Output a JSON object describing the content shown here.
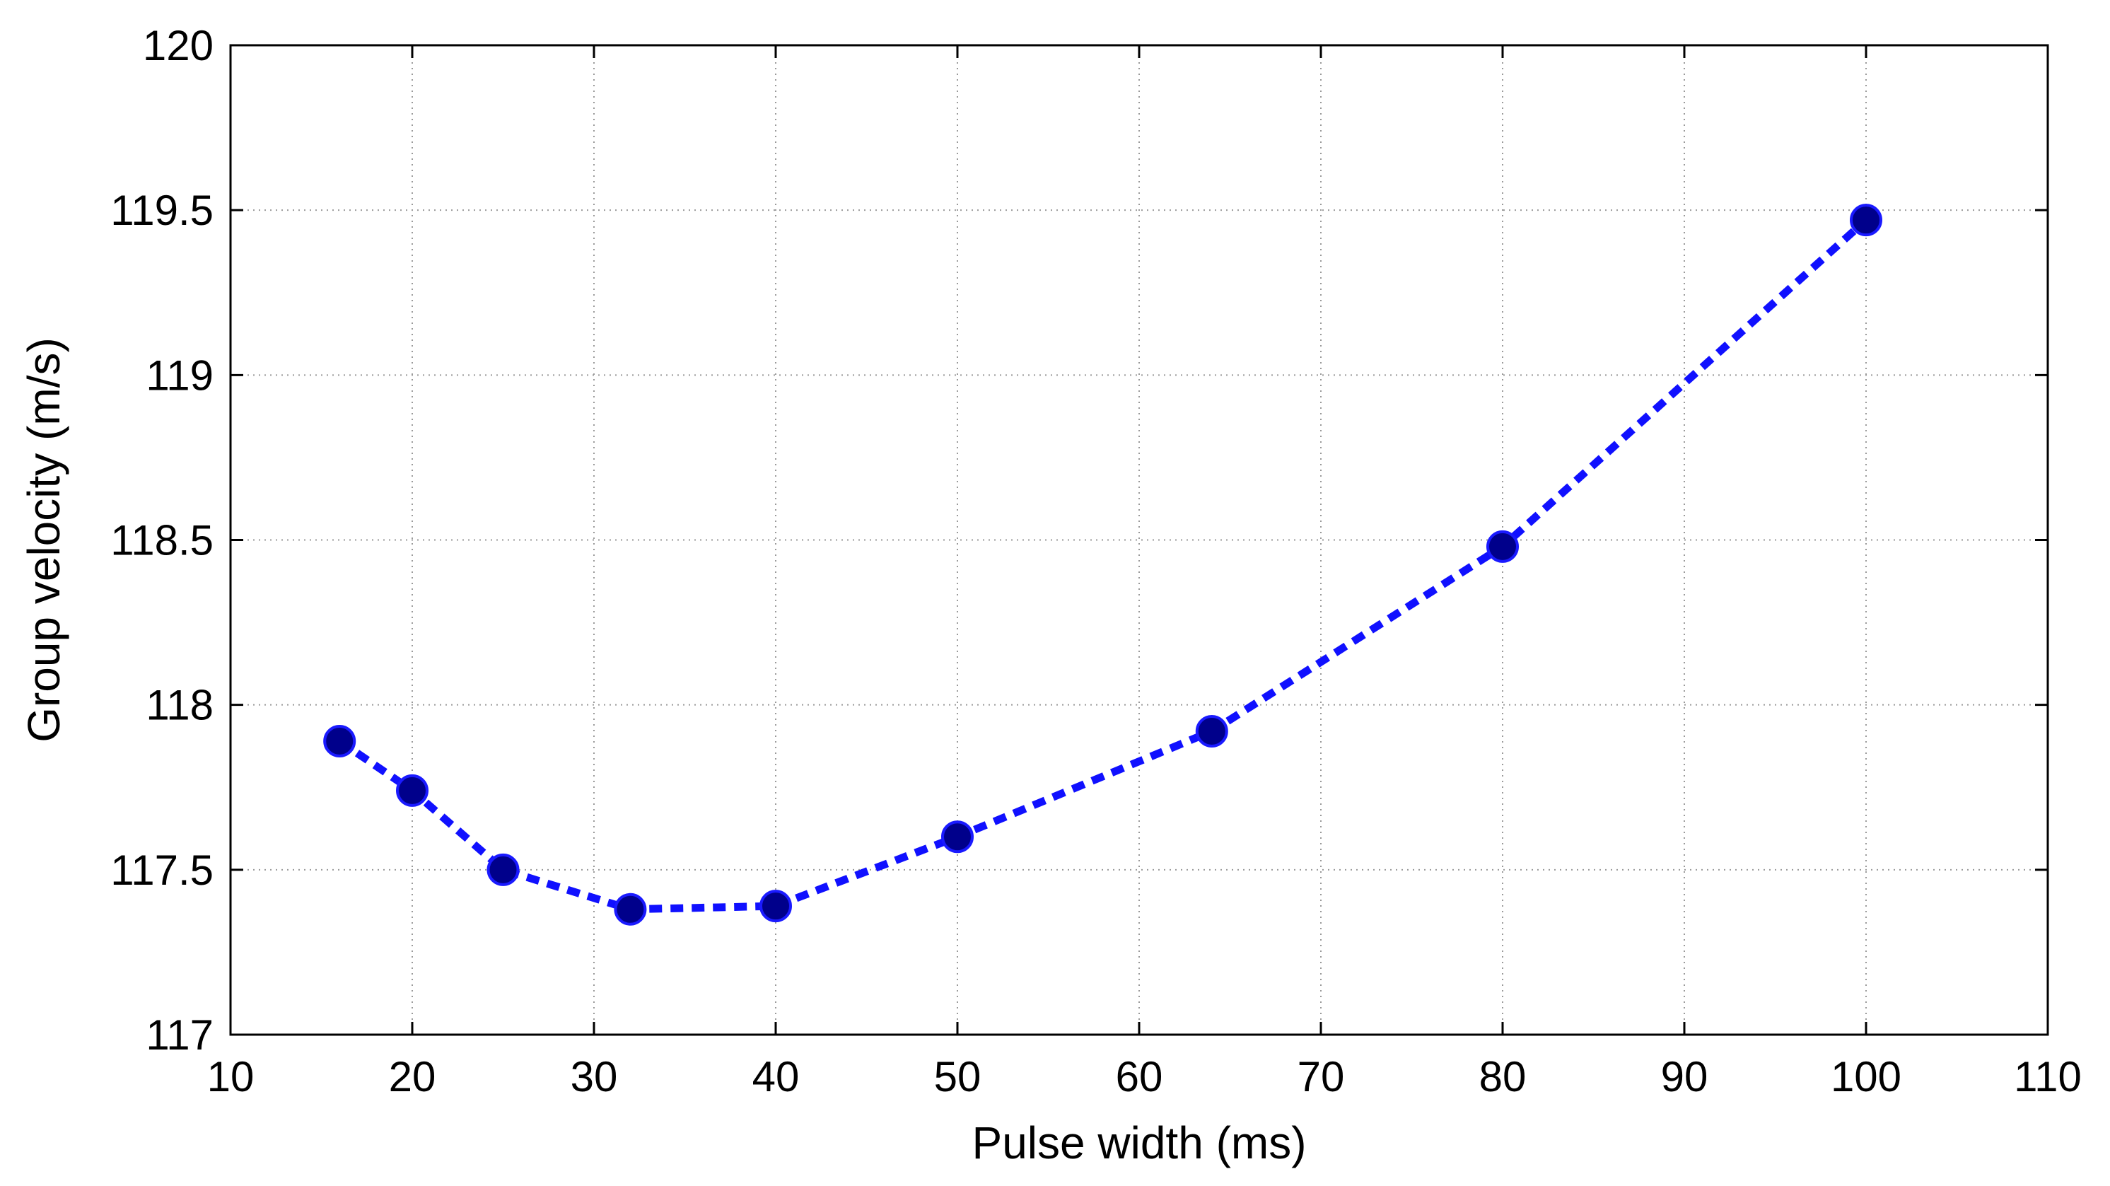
{
  "chart_data": {
    "type": "line",
    "title": "",
    "xlabel": "Pulse width (ms)",
    "ylabel": "Group velocity (m/s)",
    "xlim": [
      10,
      110
    ],
    "ylim": [
      117,
      120
    ],
    "xticks": [
      10,
      20,
      30,
      40,
      50,
      60,
      70,
      80,
      90,
      100,
      110
    ],
    "yticks": [
      117,
      117.5,
      118,
      118.5,
      119,
      119.5,
      120
    ],
    "xtick_labels": [
      "10",
      "20",
      "30",
      "40",
      "50",
      "60",
      "70",
      "80",
      "90",
      "100",
      "110"
    ],
    "ytick_labels": [
      "117",
      "117.5",
      "118",
      "118.5",
      "119",
      "119.5",
      "120"
    ],
    "grid": true,
    "series": [
      {
        "x": [
          16,
          20,
          25,
          32,
          40,
          50,
          64,
          80,
          100
        ],
        "y": [
          117.89,
          117.74,
          117.5,
          117.38,
          117.39,
          117.6,
          117.92,
          118.48,
          119.47
        ],
        "line_style": "dashed",
        "line_color": "#1010ff",
        "marker": "circle",
        "marker_color": "#00008b"
      }
    ]
  }
}
